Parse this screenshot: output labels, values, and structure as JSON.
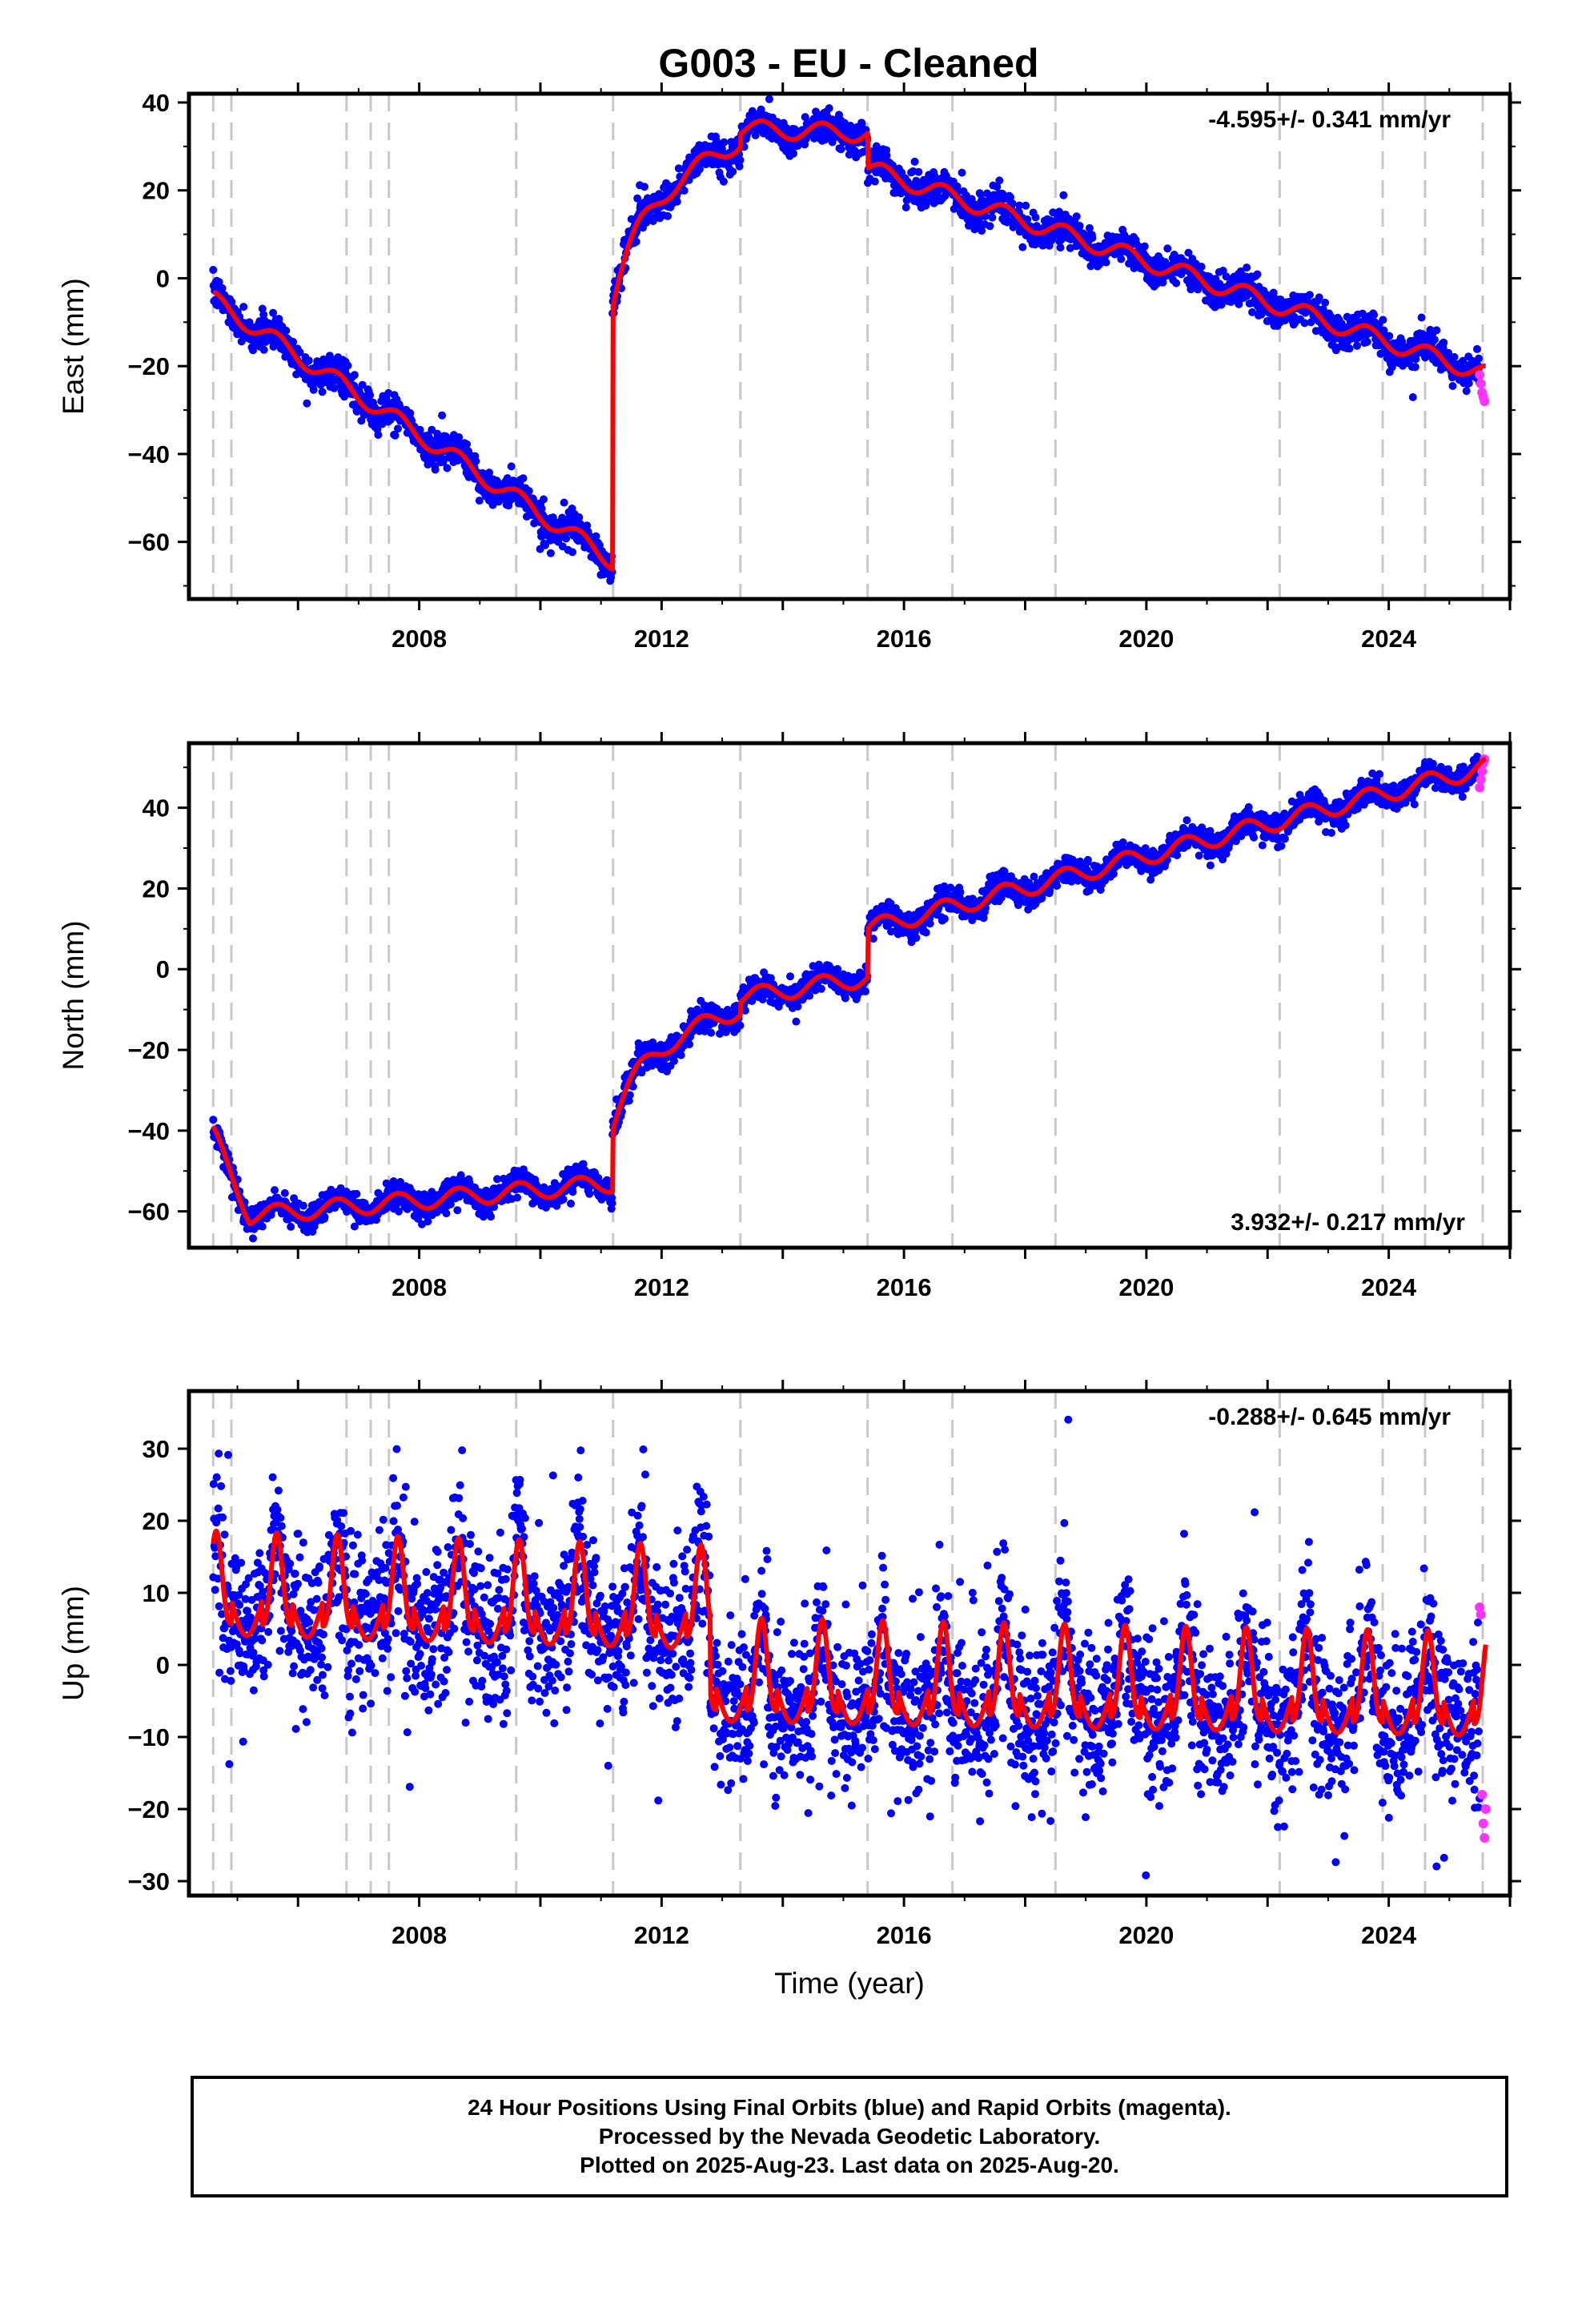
{
  "figure_title": "G003  - EU - Cleaned",
  "x_tick_labels": [
    "2008",
    "2012",
    "2016",
    "2020",
    "2024"
  ],
  "colors": {
    "final_orbits": "#0000ff",
    "rapid_orbits": "#ff33ff",
    "model_fit": "#ff0000",
    "event_lines": "#c8c8c8"
  },
  "chart_data": [
    {
      "type": "scatter",
      "component": "east",
      "ylabel": "East (mm)",
      "ylim": [
        -73,
        42
      ],
      "xlim": [
        2004.2,
        2026.0
      ],
      "yticks": [
        -60,
        -40,
        -20,
        0,
        20,
        40
      ],
      "xticks": [
        2008,
        2012,
        2016,
        2020,
        2024
      ],
      "xlabel": "",
      "rate_label": "-4.595+/- 0.341 mm/yr",
      "rate_position": "top-right",
      "event_lines_x": [
        2004.6,
        2004.9,
        2006.8,
        2007.2,
        2007.5,
        2009.6,
        2011.2,
        2013.3,
        2015.4,
        2016.8,
        2018.5,
        2022.2,
        2023.9,
        2024.6,
        2025.55
      ],
      "scatter_sigma": 1.8,
      "model_fit": {
        "segments": [
          {
            "x_start": 2004.6,
            "x_end": 2011.19,
            "y_at_start": -5,
            "slope": -9.0
          },
          {
            "x_start": 2011.19,
            "x_end": 2013.3,
            "y_at_start": -5,
            "y_at_end": 31,
            "shape": "log-recovery"
          },
          {
            "x_start": 2013.3,
            "x_end": 2015.4,
            "y_at_start": 34,
            "y_at_end": 33,
            "shape": "linear"
          },
          {
            "x_start": 2015.4,
            "x_end": 2025.6,
            "y_at_start": 25,
            "slope": -4.595
          }
        ],
        "seasonal_amplitude": 2.0,
        "steps": [
          {
            "x": 2011.19,
            "from": -67,
            "to": -5
          }
        ]
      },
      "rapid_points": [
        [
          2025.5,
          -22
        ],
        [
          2025.52,
          -24
        ],
        [
          2025.54,
          -26
        ],
        [
          2025.56,
          -27
        ],
        [
          2025.58,
          -28
        ]
      ]
    },
    {
      "type": "scatter",
      "component": "north",
      "ylabel": "North (mm)",
      "ylim": [
        -69,
        56
      ],
      "xlim": [
        2004.2,
        2026.0
      ],
      "yticks": [
        -60,
        -40,
        -20,
        0,
        20,
        40
      ],
      "xticks": [
        2008,
        2012,
        2016,
        2020,
        2024
      ],
      "xlabel": "",
      "rate_label": "3.932+/- 0.217 mm/yr",
      "rate_position": "bottom-right",
      "event_lines_x": [
        2004.6,
        2004.9,
        2006.8,
        2007.2,
        2007.5,
        2009.6,
        2011.2,
        2013.3,
        2015.4,
        2016.8,
        2018.5,
        2022.2,
        2023.9,
        2024.6,
        2025.55
      ],
      "scatter_sigma": 1.6,
      "model_fit": {
        "segments": [
          {
            "x_start": 2004.6,
            "x_end": 2005.2,
            "y_at_start": -41,
            "y_at_end": -61,
            "shape": "linear"
          },
          {
            "x_start": 2005.2,
            "x_end": 2011.19,
            "y_at_start": -61,
            "y_at_end": -53,
            "shape": "linear"
          },
          {
            "x_start": 2011.19,
            "x_end": 2013.3,
            "y_at_start": -38,
            "y_at_end": -10,
            "shape": "log-recovery"
          },
          {
            "x_start": 2013.3,
            "x_end": 2015.4,
            "y_at_start": -7,
            "y_at_end": -2,
            "shape": "linear"
          },
          {
            "x_start": 2015.4,
            "x_end": 2025.6,
            "y_at_start": 10,
            "slope": 3.932
          }
        ],
        "seasonal_amplitude": 2.2
      },
      "rapid_points": [
        [
          2025.5,
          45
        ],
        [
          2025.52,
          47
        ],
        [
          2025.54,
          49
        ],
        [
          2025.56,
          51
        ],
        [
          2025.58,
          52
        ]
      ]
    },
    {
      "type": "scatter",
      "component": "up",
      "ylabel": "Up (mm)",
      "ylim": [
        -32,
        38
      ],
      "xlim": [
        2004.2,
        2026.0
      ],
      "yticks": [
        -30,
        -20,
        -10,
        0,
        10,
        20,
        30
      ],
      "xticks": [
        2008,
        2012,
        2016,
        2020,
        2024
      ],
      "xlabel": "Time (year)",
      "rate_label": "-0.288+/- 0.645 mm/yr",
      "rate_position": "top-right",
      "event_lines_x": [
        2004.6,
        2004.9,
        2006.8,
        2007.2,
        2007.5,
        2009.6,
        2011.2,
        2013.3,
        2015.4,
        2016.8,
        2018.5,
        2022.2,
        2023.9,
        2024.6,
        2025.55
      ],
      "scatter_sigma": 5.5,
      "model_fit": {
        "segments": [
          {
            "x_start": 2004.6,
            "x_end": 2012.8,
            "y_at_start": 9,
            "y_at_end": 7,
            "shape": "linear"
          },
          {
            "x_start": 2012.8,
            "x_end": 2025.6,
            "y_at_start": -3,
            "y_at_end": -5,
            "shape": "linear"
          }
        ],
        "seasonal_amplitude": 8.0,
        "seasonal_sharpness": 3.0
      },
      "rapid_points": [
        [
          2025.5,
          8
        ],
        [
          2025.52,
          7
        ],
        [
          2025.54,
          -18
        ],
        [
          2025.56,
          -22
        ],
        [
          2025.58,
          -24
        ],
        [
          2025.6,
          -20
        ]
      ]
    }
  ],
  "footer": {
    "line1": "24 Hour Positions Using Final Orbits (blue) and Rapid Orbits (magenta).",
    "line2": "Processed by the Nevada Geodetic Laboratory.",
    "line3": "Plotted on 2025-Aug-23. Last data on 2025-Aug-20."
  }
}
